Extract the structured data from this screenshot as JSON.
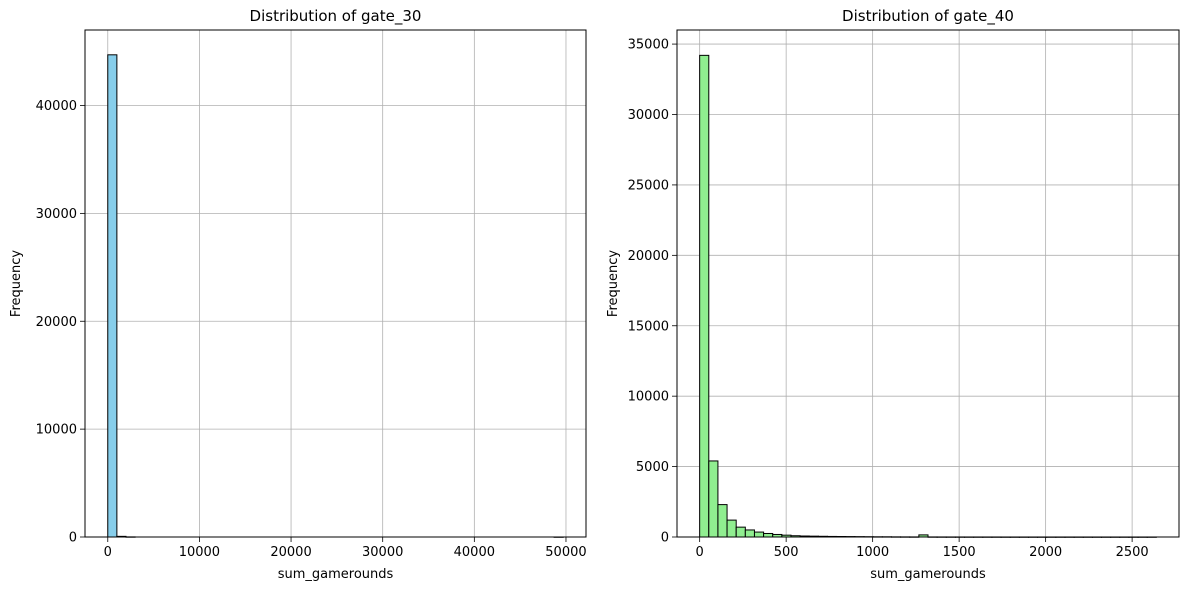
{
  "chart_data": [
    {
      "type": "bar",
      "title": "Distribution of gate_30",
      "xlabel": "sum_gamerounds",
      "ylabel": "Frequency",
      "xlim": [
        -2485,
        52185
      ],
      "ylim": [
        0,
        47000
      ],
      "xticks": [
        0,
        10000,
        20000,
        30000,
        40000,
        50000
      ],
      "yticks": [
        0,
        10000,
        20000,
        30000,
        40000
      ],
      "xtick_labels": [
        "0",
        "10000",
        "20000",
        "30000",
        "40000",
        "50000"
      ],
      "ytick_labels": [
        "0",
        "10000",
        "20000",
        "30000",
        "40000"
      ],
      "grid": true,
      "bar_color": "#87ceeb",
      "edge_color": "#000000",
      "bin_width": 994,
      "bin_start": 0,
      "values": [
        44700,
        60,
        10,
        0,
        0,
        0,
        0,
        0,
        0,
        0,
        0,
        0,
        0,
        0,
        0,
        0,
        0,
        0,
        0,
        0,
        0,
        0,
        0,
        0,
        0,
        0,
        0,
        0,
        0,
        0,
        0,
        0,
        0,
        0,
        0,
        0,
        0,
        0,
        0,
        0,
        0,
        0,
        0,
        0,
        0,
        0,
        0,
        0,
        0,
        1
      ]
    },
    {
      "type": "bar",
      "title": "Distribution of gate_40",
      "xlabel": "sum_gamerounds",
      "ylabel": "Frequency",
      "xlim": [
        -131,
        2771
      ],
      "ylim": [
        0,
        36000
      ],
      "xticks": [
        0,
        500,
        1000,
        1500,
        2000,
        2500
      ],
      "yticks": [
        0,
        5000,
        10000,
        15000,
        20000,
        25000,
        30000,
        35000
      ],
      "xtick_labels": [
        "0",
        "500",
        "1000",
        "1500",
        "2000",
        "2500"
      ],
      "ytick_labels": [
        "0",
        "5000",
        "10000",
        "15000",
        "20000",
        "25000",
        "30000",
        "35000"
      ],
      "grid": true,
      "bar_color": "#90ee90",
      "edge_color": "#000000",
      "bin_width": 52.8,
      "bin_start": 0,
      "values": [
        34200,
        5400,
        2300,
        1200,
        700,
        500,
        350,
        250,
        180,
        130,
        90,
        70,
        60,
        50,
        40,
        35,
        30,
        25,
        20,
        15,
        15,
        10,
        8,
        6,
        150,
        5,
        4,
        3,
        3,
        2,
        2,
        2,
        2,
        1,
        1,
        1,
        1,
        1,
        1,
        1,
        1,
        1,
        1,
        1,
        1,
        1,
        1,
        1,
        1,
        1
      ]
    }
  ]
}
